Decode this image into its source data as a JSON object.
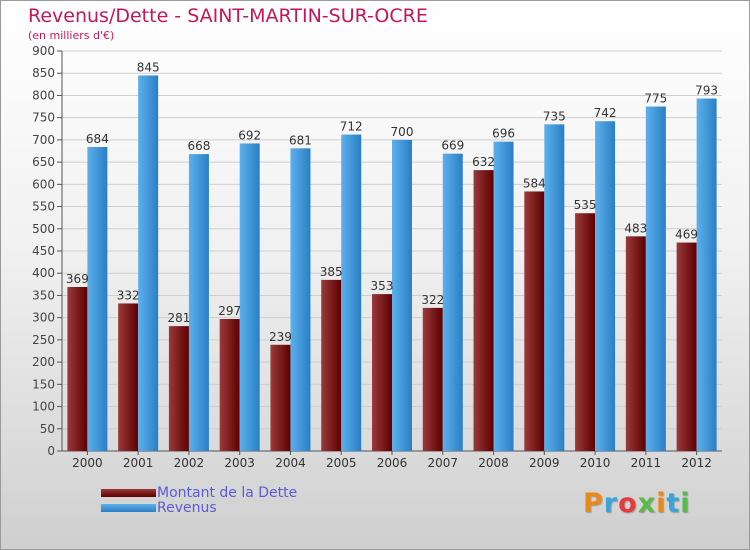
{
  "title": "Revenus/Dette - SAINT-MARTIN-SUR-OCRE",
  "subtitle": "(en milliers d'€)",
  "logo": "Proxiti",
  "logo_colors": [
    "#e88a1a",
    "#3aa4d8",
    "#e53b3b",
    "#5ab94a",
    "#e88a1a",
    "#3aa4d8",
    "#5ab94a"
  ],
  "colors": {
    "debt_dark": "#5e0000",
    "debt_light": "#9a3a3a",
    "revenue_dark": "#2a7fc4",
    "revenue_light": "#5cb0ec",
    "title": "#c2185b",
    "legend_text": "#5b5bd6"
  },
  "chart_data": {
    "type": "bar",
    "categories": [
      "2000",
      "2001",
      "2002",
      "2003",
      "2004",
      "2005",
      "2006",
      "2007",
      "2008",
      "2009",
      "2010",
      "2011",
      "2012"
    ],
    "series": [
      {
        "name": "Montant de la Dette",
        "values": [
          369,
          332,
          281,
          297,
          239,
          385,
          353,
          322,
          632,
          584,
          535,
          483,
          469
        ]
      },
      {
        "name": "Revenus",
        "values": [
          684,
          845,
          668,
          692,
          681,
          712,
          700,
          669,
          696,
          735,
          742,
          775,
          793
        ]
      }
    ],
    "ylim": [
      0,
      900
    ],
    "yticks": [
      0,
      50,
      100,
      150,
      200,
      250,
      300,
      350,
      400,
      450,
      500,
      550,
      600,
      650,
      700,
      750,
      800,
      850,
      900
    ],
    "grid": true,
    "legend": "bottom-left"
  }
}
